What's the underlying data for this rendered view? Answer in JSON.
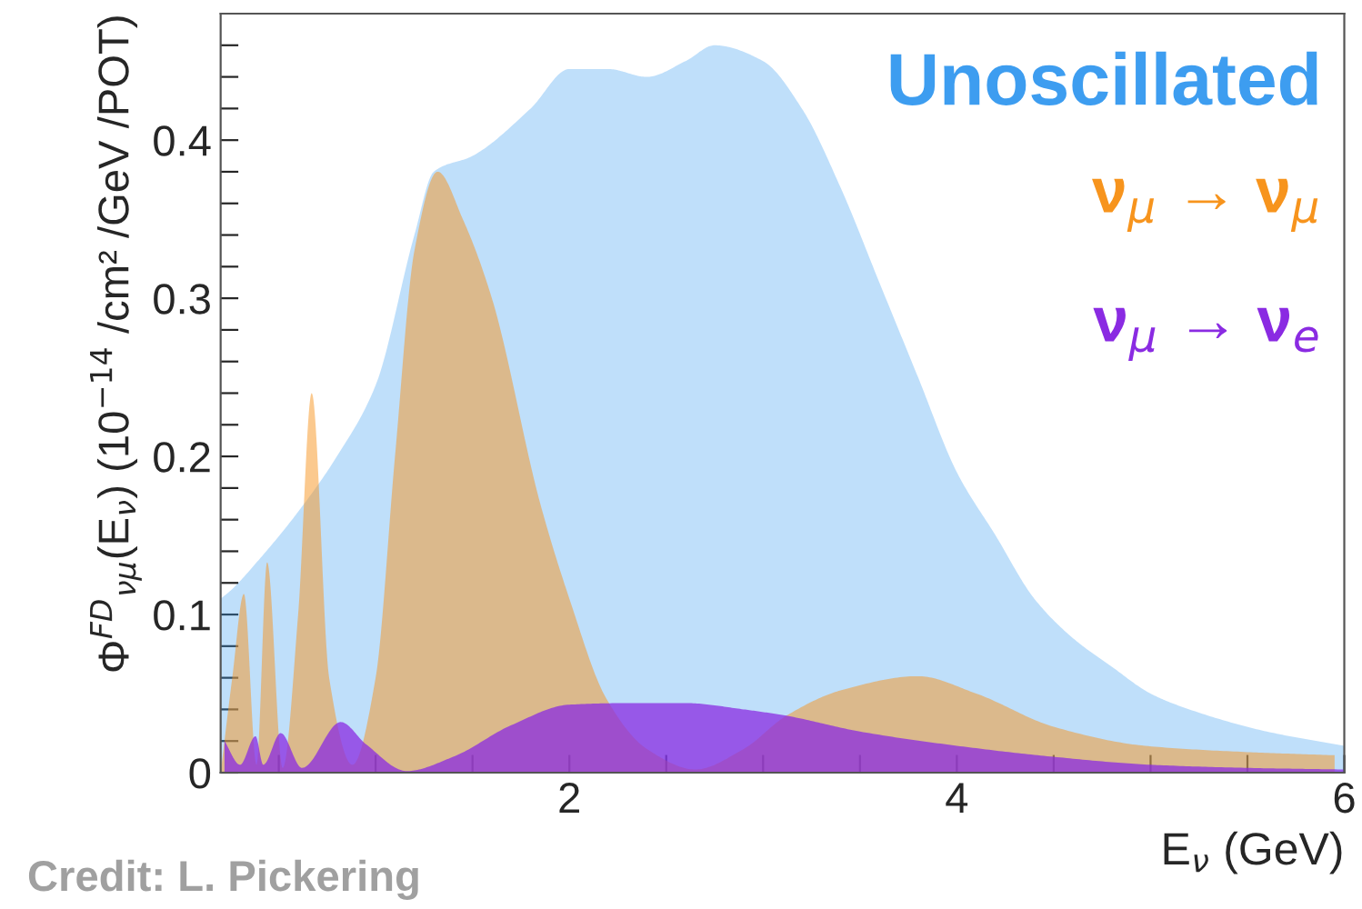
{
  "chart_data": {
    "type": "area",
    "xlabel": "E$_{ν}$ (GeV)",
    "ylabel": "Φ$^{FD}$$_{νμ}$(E$_{ν}$) (10$^{−14}$ /cm² /GeV /POT)",
    "annotations": [
      "Credit: L. Pickering"
    ],
    "legend": "top right",
    "grid": false,
    "xlim": [
      0.2,
      6
    ],
    "ylim": [
      0,
      0.48
    ],
    "xticks": [
      {
        "value": 0.5,
        "label": null
      },
      {
        "value": 1,
        "label": null
      },
      {
        "value": 1.5,
        "label": null
      },
      2,
      {
        "value": 2.5,
        "label": null
      },
      {
        "value": 3,
        "label": null
      },
      {
        "value": 3.5,
        "label": null
      },
      4,
      {
        "value": 4.5,
        "label": null
      },
      {
        "value": 5,
        "label": null
      },
      {
        "value": 5.5,
        "label": null
      },
      6
    ],
    "yticks": [
      0,
      {
        "value": 0.02,
        "label": null
      },
      {
        "value": 0.04,
        "label": null
      },
      {
        "value": 0.06,
        "label": null
      },
      {
        "value": 0.08,
        "label": null
      },
      0.1,
      {
        "value": 0.12,
        "label": null
      },
      {
        "value": 0.14,
        "label": null
      },
      {
        "value": 0.16,
        "label": null
      },
      {
        "value": 0.18,
        "label": null
      },
      0.2,
      {
        "value": 0.22,
        "label": null
      },
      {
        "value": 0.24,
        "label": null
      },
      {
        "value": 0.26,
        "label": null
      },
      {
        "value": 0.28,
        "label": null
      },
      0.3,
      {
        "value": 0.32,
        "label": null
      },
      {
        "value": 0.34,
        "label": null
      },
      {
        "value": 0.36,
        "label": null
      },
      {
        "value": 0.38,
        "label": null
      },
      0.4,
      {
        "value": 0.42,
        "label": null
      },
      {
        "value": 0.44,
        "label": null
      },
      {
        "value": 0.46,
        "label": null
      }
    ],
    "series": [
      {
        "name": "Unoscillated",
        "color": "#3d9df0",
        "x": [
          0.2,
          0.25,
          0.4,
          0.6,
          0.8,
          1.0,
          1.2,
          1.3,
          1.5,
          1.8,
          2.0,
          2.2,
          2.4,
          2.6,
          2.75,
          3.0,
          3.2,
          3.4,
          3.6,
          3.8,
          4.0,
          4.2,
          4.4,
          4.6,
          4.8,
          5.0,
          5.2,
          5.6,
          6.0
        ],
        "values": [
          0.11,
          0.115,
          0.135,
          0.165,
          0.2,
          0.245,
          0.34,
          0.38,
          0.39,
          0.42,
          0.445,
          0.445,
          0.44,
          0.45,
          0.46,
          0.45,
          0.42,
          0.37,
          0.31,
          0.25,
          0.19,
          0.15,
          0.11,
          0.085,
          0.067,
          0.05,
          0.04,
          0.026,
          0.017
        ]
      },
      {
        "name": "ν$_{μ}$ → ν$_{μ}$",
        "color": "#f7941d",
        "x": [
          0.2,
          0.26,
          0.32,
          0.385,
          0.44,
          0.52,
          0.6,
          0.67,
          0.76,
          0.88,
          1.0,
          1.1,
          1.2,
          1.32,
          1.45,
          1.6,
          1.85,
          2.0,
          2.19,
          2.4,
          2.65,
          2.9,
          3.12,
          3.4,
          3.8,
          4.1,
          4.5,
          4.97,
          5.5,
          5.95
        ],
        "values": [
          0.0,
          0.06,
          0.113,
          0.005,
          0.133,
          0.003,
          0.1,
          0.24,
          0.06,
          0.005,
          0.06,
          0.2,
          0.33,
          0.38,
          0.35,
          0.3,
          0.17,
          0.11,
          0.047,
          0.015,
          0.002,
          0.015,
          0.036,
          0.052,
          0.061,
          0.05,
          0.029,
          0.017,
          0.013,
          0.011
        ]
      },
      {
        "name": "ν$_{μ}$ → ν$_{e}$",
        "color": "#8a2be2",
        "x": [
          0.22,
          0.3,
          0.38,
          0.42,
          0.51,
          0.62,
          0.82,
          0.95,
          1.16,
          1.4,
          1.7,
          2.0,
          2.3,
          2.6,
          2.9,
          3.12,
          3.5,
          4.0,
          4.5,
          5.0,
          5.5,
          6.0
        ],
        "values": [
          0.02,
          0.005,
          0.023,
          0.005,
          0.025,
          0.003,
          0.032,
          0.018,
          0.001,
          0.01,
          0.03,
          0.043,
          0.044,
          0.044,
          0.04,
          0.036,
          0.026,
          0.017,
          0.01,
          0.005,
          0.003,
          0.002
        ]
      }
    ]
  }
}
